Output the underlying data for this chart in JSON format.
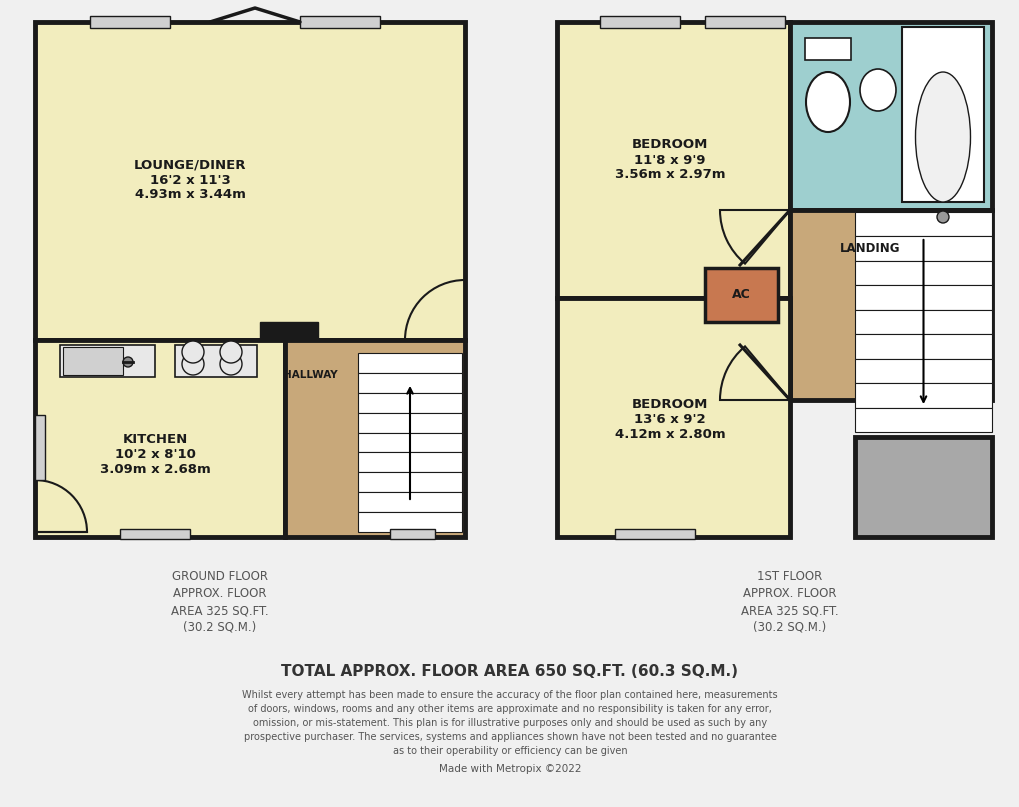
{
  "bg_color": "#f0f0f0",
  "wall_color": "#1a1a1a",
  "room_fill_yellow": "#f2edbe",
  "room_fill_tan": "#c8a87a",
  "room_fill_blue": "#9ecfcf",
  "room_fill_gray": "#a8a8a8",
  "room_fill_white": "#ffffff",
  "wall_lw": 3.5,
  "ground_floor_label": "GROUND FLOOR\nAPPROX. FLOOR\nAREA 325 SQ.FT.\n(30.2 SQ.M.)",
  "first_floor_label": "1ST FLOOR\nAPPROX. FLOOR\nAREA 325 SQ.FT.\n(30.2 SQ.M.)",
  "total_label": "TOTAL APPROX. FLOOR AREA 650 SQ.FT. (60.3 SQ.M.)",
  "disclaimer_line1": "Whilst every attempt has been made to ensure the accuracy of the floor plan contained here, measurements",
  "disclaimer_line2": "of doors, windows, rooms and any other items are approximate and no responsibility is taken for any error,",
  "disclaimer_line3": "omission, or mis-statement. This plan is for illustrative purposes only and should be used as such by any",
  "disclaimer_line4": "prospective purchaser. The services, systems and appliances shown have not been tested and no guarantee",
  "disclaimer_line5": "as to their operability or efficiency can be given",
  "credit": "Made with Metropix ©2022"
}
